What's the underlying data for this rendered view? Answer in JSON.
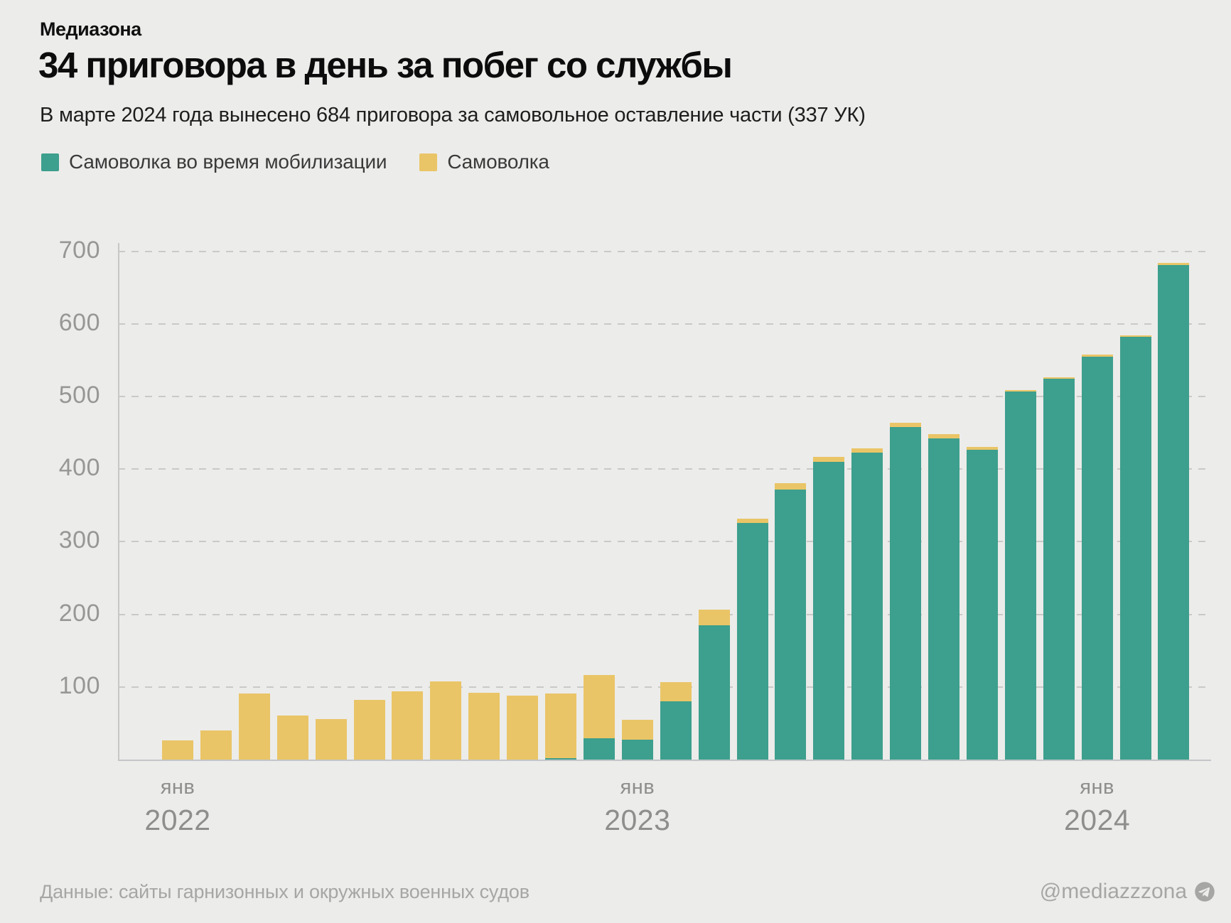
{
  "header": {
    "brand": "Медиазона",
    "title": "34 приговора в день за побег со службы",
    "subtitle": "В марте 2024 года вынесено 684 приговора за самовольное оставление части (337 УК)"
  },
  "legend": [
    {
      "label": "Самоволка во время мобилизации",
      "color": "#3d9f8d"
    },
    {
      "label": "Самоволка",
      "color": "#eac567"
    }
  ],
  "footer": {
    "source": "Данные: сайты гарнизонных и окружных военных судов",
    "handle": "@mediazzzona",
    "icon": "telegram-icon"
  },
  "colors": {
    "background": "#ececea",
    "mobilization_bar": "#3d9f8d",
    "regular_bar": "#eac567",
    "gridline": "#c9c9c7",
    "axis": "#c3c5c9",
    "axis_text": "#979795",
    "footer_text": "#a6a6a4"
  },
  "chart_data": {
    "type": "bar",
    "stacked": true,
    "title": "34 приговора в день за побег со службы",
    "subtitle": "В марте 2024 года вынесено 684 приговора за самовольное оставление части (337 УК)",
    "xlabel": "",
    "ylabel": "",
    "ylim": [
      0,
      700
    ],
    "yticks": [
      100,
      200,
      300,
      400,
      500,
      600,
      700
    ],
    "grid": "horizontal-dashed",
    "legend_position": "top-left",
    "categories": [
      "янв 2022",
      "фев 2022",
      "мар 2022",
      "апр 2022",
      "май 2022",
      "июн 2022",
      "июл 2022",
      "авг 2022",
      "сен 2022",
      "окт 2022",
      "ноя 2022",
      "дек 2022",
      "янв 2023",
      "фев 2023",
      "мар 2023",
      "апр 2023",
      "май 2023",
      "июн 2023",
      "июл 2023",
      "авг 2023",
      "сен 2023",
      "окт 2023",
      "ноя 2023",
      "дек 2023",
      "янв 2024",
      "фев 2024",
      "мар 2024"
    ],
    "series": [
      {
        "name": "Самоволка во время мобилизации",
        "color": "#3d9f8d",
        "values": [
          0,
          0,
          0,
          0,
          0,
          0,
          0,
          0,
          0,
          0,
          2,
          29,
          27,
          80,
          185,
          326,
          372,
          410,
          423,
          458,
          442,
          427,
          507,
          524,
          555,
          582,
          681
        ]
      },
      {
        "name": "Самоволка",
        "color": "#eac567",
        "values": [
          26,
          40,
          91,
          61,
          56,
          82,
          94,
          108,
          92,
          88,
          89,
          87,
          28,
          27,
          21,
          6,
          9,
          7,
          6,
          6,
          6,
          4,
          2,
          2,
          3,
          2,
          3
        ]
      }
    ],
    "totals": [
      26,
      40,
      91,
      61,
      56,
      82,
      94,
      108,
      92,
      88,
      91,
      116,
      55,
      107,
      206,
      332,
      381,
      417,
      429,
      464,
      448,
      431,
      509,
      526,
      558,
      584,
      684
    ],
    "x_tick_labels": [
      {
        "index": 0,
        "month": "янв",
        "year": "2022"
      },
      {
        "index": 12,
        "month": "янв",
        "year": "2023"
      },
      {
        "index": 24,
        "month": "янв",
        "year": "2024"
      }
    ]
  }
}
